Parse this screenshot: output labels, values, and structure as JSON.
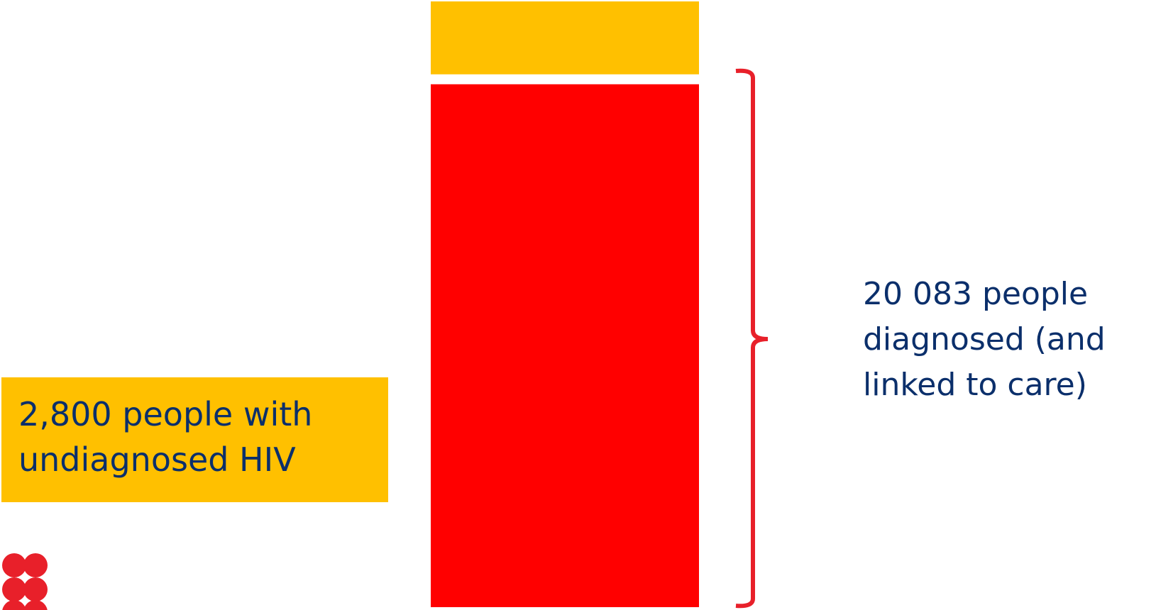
{
  "chart_data": {
    "type": "stacked_bar",
    "categories": [
      null
    ],
    "series": [
      {
        "color": "#ff0000",
        "values": [
          20083
        ],
        "value_labels": [
          "20 083 people diagnosed (and linked to care)"
        ]
      },
      {
        "color": "#ffc000",
        "values": [
          2800
        ],
        "value_labels": [
          "2,800 people with undiagnosed HIV"
        ]
      }
    ]
  }
}
